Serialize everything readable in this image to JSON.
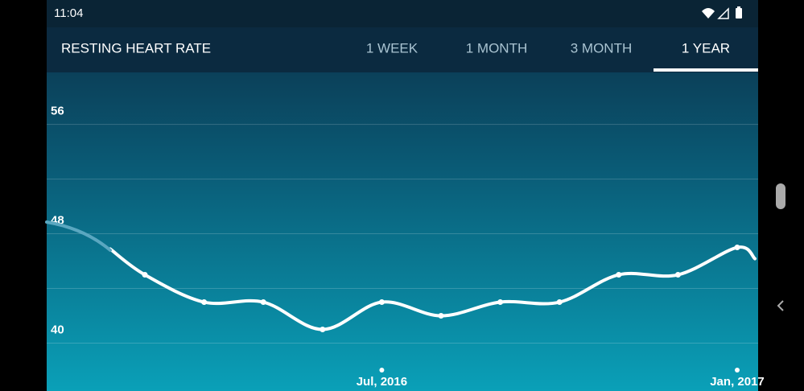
{
  "status_bar": {
    "time": "11:04"
  },
  "header": {
    "title": "RESTING HEART RATE",
    "tabs": [
      "1 WEEK",
      "1 MONTH",
      "3 MONTH",
      "1 YEAR"
    ],
    "active_tab": 3
  },
  "chart_data": {
    "type": "line",
    "categories": [
      null,
      null,
      null,
      null,
      "Jul, 2016",
      null,
      null,
      null,
      null,
      null,
      "Jan, 2017"
    ],
    "values": [
      45,
      43,
      43,
      41,
      43,
      42,
      43,
      43,
      45,
      45,
      47
    ],
    "color": "#ffffff",
    "ylim": [
      36.5,
      59.8
    ],
    "yticks": [
      40,
      48,
      56
    ],
    "grid": true
  }
}
